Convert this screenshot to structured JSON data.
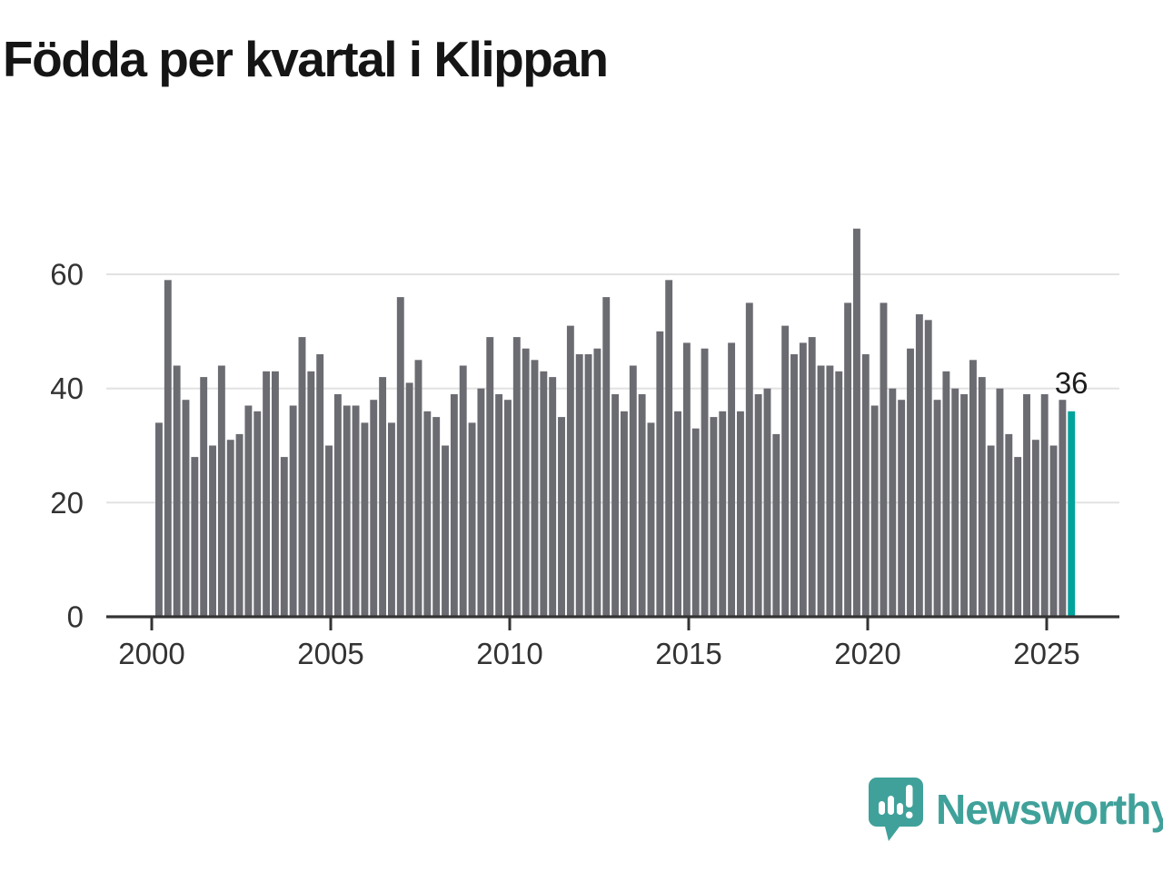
{
  "title": "Födda per kvartal i Klippan",
  "logo": {
    "brand_name": "Newsworthy",
    "icon": "newsworthy-logo-icon"
  },
  "colors": {
    "bar": "#6b6b72",
    "highlight": "#00a39b",
    "axis": "#333333",
    "grid": "#e2e2e2",
    "title": "#151515",
    "tick_text": "#333333",
    "annotation": "#1d1d1d",
    "brand": "#3fa19a"
  },
  "chart_data": {
    "type": "bar",
    "title": "Födda per kvartal i Klippan",
    "xlabel": "",
    "ylabel": "",
    "x_start": "2000-Q1",
    "x_end": "2025-Q3",
    "x_tick_labels": [
      "2000",
      "2005",
      "2010",
      "2015",
      "2020",
      "2025"
    ],
    "y_tick_labels": [
      "0",
      "20",
      "40",
      "60"
    ],
    "gridlines_y": [
      20,
      40,
      60
    ],
    "ylim": [
      0,
      70
    ],
    "grid": "horizontal-only",
    "legend_position": "none",
    "categories": [
      "2000-Q1",
      "2000-Q2",
      "2000-Q3",
      "2000-Q4",
      "2001-Q1",
      "2001-Q2",
      "2001-Q3",
      "2001-Q4",
      "2002-Q1",
      "2002-Q2",
      "2002-Q3",
      "2002-Q4",
      "2003-Q1",
      "2003-Q2",
      "2003-Q3",
      "2003-Q4",
      "2004-Q1",
      "2004-Q2",
      "2004-Q3",
      "2004-Q4",
      "2005-Q1",
      "2005-Q2",
      "2005-Q3",
      "2005-Q4",
      "2006-Q1",
      "2006-Q2",
      "2006-Q3",
      "2006-Q4",
      "2007-Q1",
      "2007-Q2",
      "2007-Q3",
      "2007-Q4",
      "2008-Q1",
      "2008-Q2",
      "2008-Q3",
      "2008-Q4",
      "2009-Q1",
      "2009-Q2",
      "2009-Q3",
      "2009-Q4",
      "2010-Q1",
      "2010-Q2",
      "2010-Q3",
      "2010-Q4",
      "2011-Q1",
      "2011-Q2",
      "2011-Q3",
      "2011-Q4",
      "2012-Q1",
      "2012-Q2",
      "2012-Q3",
      "2012-Q4",
      "2013-Q1",
      "2013-Q2",
      "2013-Q3",
      "2013-Q4",
      "2014-Q1",
      "2014-Q2",
      "2014-Q3",
      "2014-Q4",
      "2015-Q1",
      "2015-Q2",
      "2015-Q3",
      "2015-Q4",
      "2016-Q1",
      "2016-Q2",
      "2016-Q3",
      "2016-Q4",
      "2017-Q1",
      "2017-Q2",
      "2017-Q3",
      "2017-Q4",
      "2018-Q1",
      "2018-Q2",
      "2018-Q3",
      "2018-Q4",
      "2019-Q1",
      "2019-Q2",
      "2019-Q3",
      "2019-Q4",
      "2020-Q1",
      "2020-Q2",
      "2020-Q3",
      "2020-Q4",
      "2021-Q1",
      "2021-Q2",
      "2021-Q3",
      "2021-Q4",
      "2022-Q1",
      "2022-Q2",
      "2022-Q3",
      "2022-Q4",
      "2023-Q1",
      "2023-Q2",
      "2023-Q3",
      "2023-Q4",
      "2024-Q1",
      "2024-Q2",
      "2024-Q3",
      "2024-Q4",
      "2025-Q1",
      "2025-Q2",
      "2025-Q3"
    ],
    "values": [
      34,
      59,
      44,
      38,
      28,
      42,
      30,
      44,
      31,
      32,
      37,
      36,
      43,
      43,
      28,
      37,
      49,
      43,
      46,
      30,
      39,
      37,
      37,
      34,
      38,
      42,
      34,
      56,
      41,
      45,
      36,
      35,
      30,
      39,
      44,
      34,
      40,
      49,
      39,
      38,
      49,
      47,
      45,
      43,
      42,
      35,
      51,
      46,
      46,
      47,
      56,
      39,
      36,
      44,
      39,
      34,
      50,
      59,
      36,
      48,
      33,
      47,
      35,
      36,
      48,
      36,
      55,
      39,
      40,
      32,
      51,
      46,
      48,
      49,
      44,
      44,
      43,
      55,
      68,
      46,
      37,
      55,
      40,
      38,
      47,
      53,
      52,
      38,
      43,
      40,
      39,
      45,
      42,
      30,
      40,
      32,
      28,
      39,
      31,
      39,
      30,
      38,
      36
    ],
    "highlight": {
      "category": "2025-Q3",
      "index": 102,
      "value": 36,
      "label": "36"
    }
  }
}
